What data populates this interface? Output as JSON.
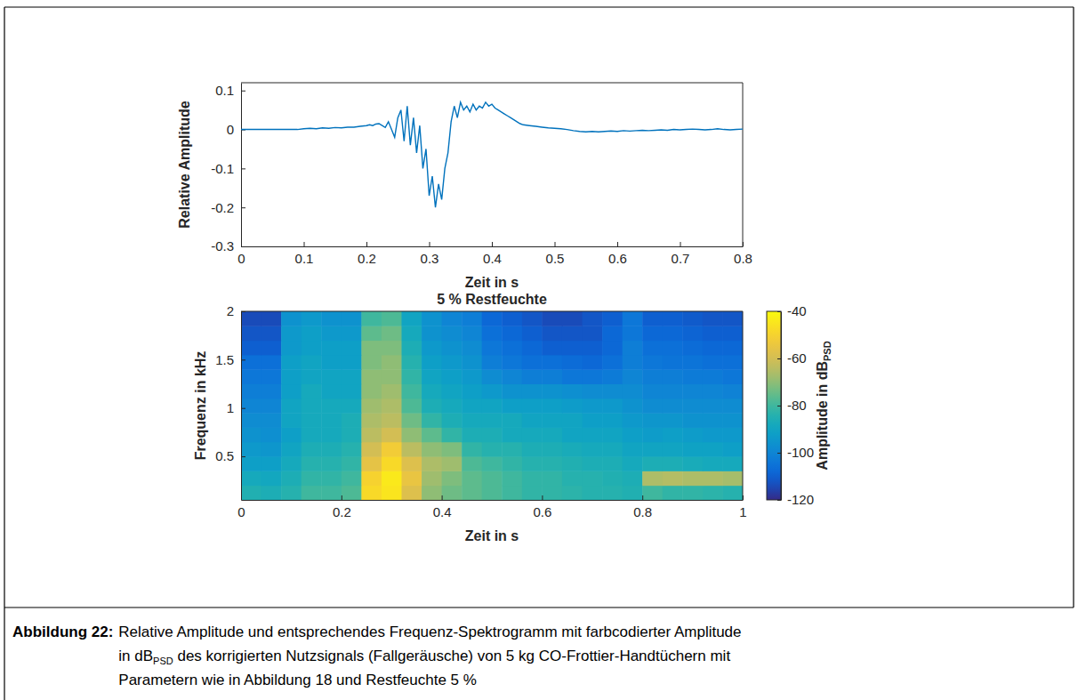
{
  "chart_data": [
    {
      "type": "line",
      "color": "#0072bd",
      "x_label": "Zeit in s",
      "y_label": "Relative Amplitude",
      "xlim": [
        0,
        0.8
      ],
      "xticks": [
        0,
        0.1,
        0.2,
        0.3,
        0.4,
        0.5,
        0.6,
        0.7,
        0.8
      ],
      "ylim": [
        -0.3,
        0.12
      ],
      "yticks": [
        -0.3,
        -0.2,
        -0.1,
        0,
        0.1
      ],
      "x": [
        0,
        0.01,
        0.02,
        0.03,
        0.04,
        0.05,
        0.06,
        0.07,
        0.08,
        0.09,
        0.1,
        0.11,
        0.12,
        0.13,
        0.14,
        0.15,
        0.16,
        0.17,
        0.18,
        0.19,
        0.2,
        0.205,
        0.21,
        0.215,
        0.22,
        0.225,
        0.23,
        0.235,
        0.24,
        0.245,
        0.25,
        0.255,
        0.26,
        0.265,
        0.27,
        0.275,
        0.28,
        0.285,
        0.29,
        0.295,
        0.3,
        0.305,
        0.31,
        0.315,
        0.32,
        0.325,
        0.33,
        0.335,
        0.34,
        0.345,
        0.35,
        0.355,
        0.36,
        0.365,
        0.37,
        0.375,
        0.38,
        0.385,
        0.39,
        0.395,
        0.4,
        0.405,
        0.41,
        0.415,
        0.42,
        0.425,
        0.43,
        0.435,
        0.44,
        0.445,
        0.45,
        0.46,
        0.47,
        0.48,
        0.49,
        0.5,
        0.51,
        0.52,
        0.53,
        0.54,
        0.55,
        0.56,
        0.57,
        0.58,
        0.59,
        0.6,
        0.61,
        0.62,
        0.63,
        0.64,
        0.65,
        0.66,
        0.67,
        0.68,
        0.69,
        0.7,
        0.71,
        0.72,
        0.73,
        0.74,
        0.75,
        0.76,
        0.77,
        0.78,
        0.79,
        0.8
      ],
      "values": [
        0,
        0,
        0,
        0,
        0,
        0,
        0,
        0,
        0,
        0,
        0.002,
        0.003,
        0.002,
        0.004,
        0.003,
        0.005,
        0.004,
        0.006,
        0.006,
        0.008,
        0.01,
        0.012,
        0.01,
        0.014,
        0.015,
        0.01,
        0.005,
        0.02,
        0,
        -0.02,
        0.03,
        0.05,
        -0.03,
        0.06,
        -0.04,
        0.03,
        -0.06,
        0.01,
        -0.1,
        -0.05,
        -0.17,
        -0.12,
        -0.2,
        -0.14,
        -0.18,
        -0.1,
        -0.06,
        0.02,
        0.06,
        0.03,
        0.07,
        0.05,
        0.06,
        0.045,
        0.065,
        0.05,
        0.06,
        0.055,
        0.07,
        0.06,
        0.065,
        0.055,
        0.05,
        0.045,
        0.04,
        0.035,
        0.03,
        0.025,
        0.02,
        0.015,
        0.012,
        0.01,
        0.008,
        0.006,
        0.004,
        0.003,
        0.002,
        0,
        -0.003,
        -0.005,
        -0.006,
        -0.005,
        -0.006,
        -0.005,
        -0.004,
        -0.005,
        -0.003,
        -0.004,
        -0.003,
        -0.002,
        -0.003,
        -0.002,
        -0.001,
        -0.002,
        0,
        -0.001,
        0,
        0.001,
        0,
        -0.001,
        0,
        0.002,
        0,
        -0.001,
        0,
        0.001
      ]
    },
    {
      "type": "heatmap",
      "title": "5 % Restfeuchte",
      "x_label": "Zeit in s",
      "y_label": "Frequenz in kHz",
      "color": "parula",
      "xlim": [
        0,
        1
      ],
      "xticks": [
        0,
        0.2,
        0.4,
        0.6,
        0.8,
        1
      ],
      "ylim": [
        0.05,
        2
      ],
      "yticks": [
        0.5,
        1,
        1.5,
        2
      ],
      "x_edges": [
        0,
        0.04,
        0.08,
        0.12,
        0.16,
        0.2,
        0.24,
        0.28,
        0.32,
        0.36,
        0.4,
        0.44,
        0.48,
        0.52,
        0.56,
        0.6,
        0.64,
        0.68,
        0.72,
        0.76,
        0.8,
        0.84,
        0.88,
        0.92,
        0.96,
        1
      ],
      "y_edges": [
        0.05,
        0.2,
        0.35,
        0.5,
        0.65,
        0.8,
        0.95,
        1.1,
        1.25,
        1.4,
        1.55,
        1.7,
        1.85,
        2
      ],
      "cells": [
        [
          -85,
          -86,
          -84,
          -80,
          -80,
          -78,
          -48,
          -45,
          -58,
          -70,
          -74,
          -76,
          -78,
          -80,
          -82,
          -82,
          -83,
          -84,
          -84,
          -85,
          -80,
          -82,
          -82,
          -83,
          -84
        ],
        [
          -88,
          -89,
          -86,
          -82,
          -82,
          -80,
          -50,
          -44,
          -55,
          -68,
          -72,
          -76,
          -78,
          -80,
          -82,
          -82,
          -84,
          -84,
          -85,
          -86,
          -66,
          -65,
          -66,
          -66,
          -67
        ],
        [
          -92,
          -92,
          -88,
          -84,
          -84,
          -82,
          -56,
          -48,
          -58,
          -66,
          -68,
          -78,
          -80,
          -82,
          -84,
          -84,
          -85,
          -86,
          -86,
          -88,
          -86,
          -86,
          -87,
          -88,
          -88
        ],
        [
          -94,
          -95,
          -90,
          -86,
          -86,
          -84,
          -60,
          -52,
          -64,
          -70,
          -72,
          -82,
          -84,
          -84,
          -86,
          -86,
          -87,
          -88,
          -88,
          -90,
          -90,
          -90,
          -91,
          -91,
          -92
        ],
        [
          -96,
          -97,
          -92,
          -88,
          -88,
          -86,
          -64,
          -60,
          -70,
          -76,
          -82,
          -86,
          -86,
          -88,
          -88,
          -88,
          -90,
          -90,
          -90,
          -92,
          -93,
          -92,
          -93,
          -94,
          -94
        ],
        [
          -98,
          -98,
          -90,
          -88,
          -88,
          -86,
          -66,
          -64,
          -74,
          -82,
          -86,
          -88,
          -88,
          -88,
          -90,
          -90,
          -90,
          -92,
          -92,
          -94,
          -95,
          -95,
          -96,
          -96,
          -96
        ],
        [
          -100,
          -100,
          -90,
          -88,
          -88,
          -88,
          -68,
          -66,
          -78,
          -86,
          -88,
          -90,
          -90,
          -92,
          -92,
          -92,
          -93,
          -94,
          -94,
          -96,
          -98,
          -98,
          -98,
          -98,
          -98
        ],
        [
          -102,
          -102,
          -92,
          -88,
          -90,
          -90,
          -70,
          -68,
          -80,
          -88,
          -90,
          -92,
          -94,
          -96,
          -96,
          -96,
          -97,
          -98,
          -98,
          -98,
          -100,
          -100,
          -100,
          -100,
          -101
        ],
        [
          -104,
          -104,
          -92,
          -90,
          -90,
          -90,
          -70,
          -70,
          -82,
          -90,
          -92,
          -94,
          -98,
          -100,
          -102,
          -102,
          -104,
          -104,
          -103,
          -100,
          -102,
          -102,
          -103,
          -103,
          -104
        ],
        [
          -106,
          -106,
          -92,
          -90,
          -92,
          -92,
          -72,
          -70,
          -84,
          -92,
          -94,
          -96,
          -102,
          -104,
          -106,
          -106,
          -107,
          -108,
          -106,
          -102,
          -104,
          -105,
          -105,
          -106,
          -106
        ],
        [
          -110,
          -110,
          -94,
          -92,
          -92,
          -92,
          -72,
          -72,
          -86,
          -94,
          -96,
          -98,
          -104,
          -106,
          -108,
          -110,
          -110,
          -110,
          -108,
          -102,
          -106,
          -106,
          -107,
          -108,
          -108
        ],
        [
          -112,
          -112,
          -94,
          -92,
          -94,
          -94,
          -76,
          -74,
          -88,
          -96,
          -98,
          -100,
          -106,
          -108,
          -110,
          -112,
          -112,
          -112,
          -108,
          -104,
          -108,
          -108,
          -109,
          -110,
          -110
        ],
        [
          -114,
          -114,
          -96,
          -94,
          -96,
          -96,
          -80,
          -78,
          -90,
          -96,
          -100,
          -102,
          -108,
          -110,
          -112,
          -114,
          -114,
          -112,
          -110,
          -104,
          -110,
          -110,
          -111,
          -112,
          -112
        ]
      ],
      "colorbar": {
        "label": [
          {
            "text": "Amplitude in dB"
          },
          {
            "sub": "PSD"
          }
        ],
        "lim": [
          -120,
          -40
        ],
        "ticks": [
          -120,
          -100,
          -80,
          -60,
          -40
        ]
      }
    }
  ],
  "caption": {
    "label": "Abbildung 22:",
    "lines": [
      [
        {
          "text": "Relative Amplitude und entsprechendes Frequenz-Spektrogramm mit farbcodierter Amplitude"
        }
      ],
      [
        {
          "text": "in dB"
        },
        {
          "sub": "PSD"
        },
        {
          "text": " des korrigierten Nutzsignals (Fallgeräusche) von 5 kg CO-Frottier-Handtüchern mit"
        }
      ],
      [
        {
          "text": "Parametern wie in Abbildung 18 und Restfeuchte 5 %"
        }
      ]
    ]
  }
}
